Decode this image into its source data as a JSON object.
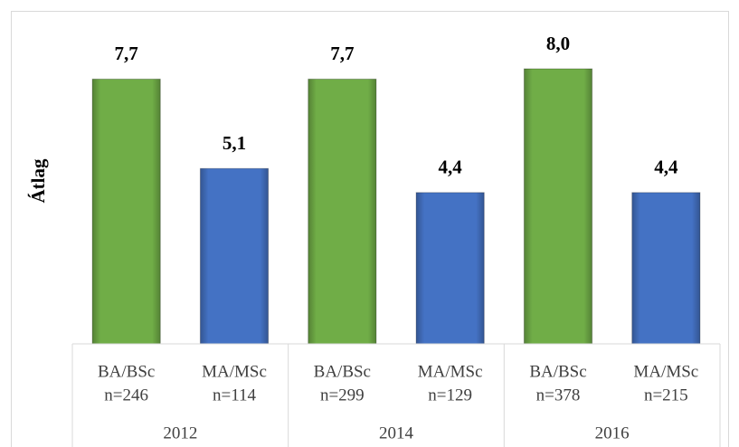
{
  "chart_data": {
    "type": "bar",
    "y_label": "Átlag",
    "categories": [
      [
        "BA/BSc",
        "n=246"
      ],
      [
        "MA/MSc",
        "n=114"
      ],
      [
        "BA/BSc",
        "n=299"
      ],
      [
        "MA/MSc",
        "n=129"
      ],
      [
        "BA/BSc",
        "n=378"
      ],
      [
        "MA/MSc",
        "n=215"
      ]
    ],
    "groups": [
      "2012",
      "2014",
      "2016"
    ],
    "values": [
      7.7,
      5.1,
      7.7,
      4.4,
      8.0,
      4.4
    ],
    "value_labels": [
      "7,7",
      "5,1",
      "7,7",
      "4,4",
      "8,0",
      "4,4"
    ],
    "colors": [
      "#70ad47",
      "#4472c4",
      "#70ad47",
      "#4472c4",
      "#70ad47",
      "#4472c4"
    ],
    "ylim": [
      0,
      9
    ]
  }
}
